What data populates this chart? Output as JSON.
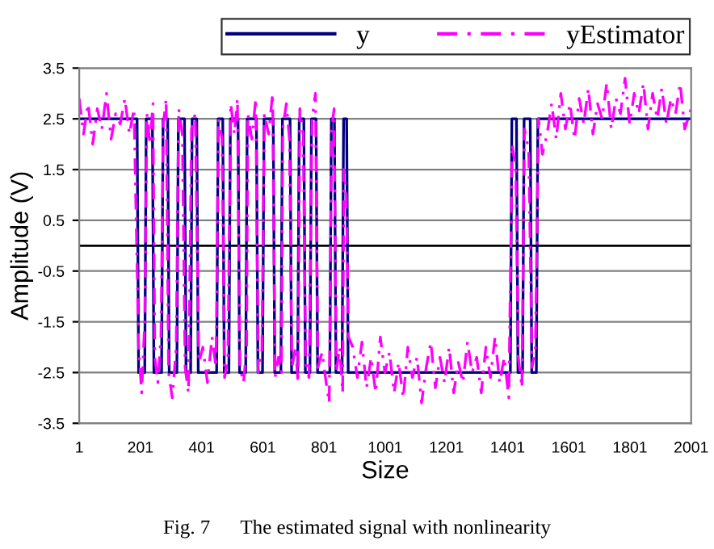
{
  "chart_data": {
    "type": "line",
    "xlabel": "Size",
    "ylabel": "Amplitude (V)",
    "xlim": [
      1,
      2001
    ],
    "xticks": [
      1,
      201,
      401,
      601,
      801,
      1001,
      1201,
      1401,
      1601,
      1801,
      2001
    ],
    "ylim": [
      -3.5,
      3.5
    ],
    "yticks": [
      -3.5,
      -2.5,
      -1.5,
      -0.5,
      0.5,
      1.5,
      2.5,
      3.5
    ],
    "grid": "y",
    "legend": "top right",
    "ref_lines": [
      {
        "axis": "y",
        "value": 0,
        "color": "#000000"
      }
    ],
    "annotations": [
      "Fig. 7      The estimated signal with nonlinearity"
    ],
    "series": [
      {
        "name": "y",
        "color": "#000080",
        "line_style": "solid",
        "x": [
          1,
          190,
          195,
          215,
          220,
          240,
          245,
          270,
          275,
          290,
          295,
          320,
          325,
          345,
          350,
          365,
          370,
          385,
          390,
          450,
          455,
          470,
          475,
          490,
          495,
          520,
          525,
          545,
          550,
          580,
          585,
          600,
          605,
          635,
          640,
          660,
          665,
          690,
          695,
          715,
          720,
          735,
          740,
          755,
          760,
          775,
          780,
          820,
          825,
          835,
          840,
          860,
          865,
          875,
          880,
          1410,
          1415,
          1430,
          1435,
          1450,
          1455,
          1475,
          1480,
          1495,
          1500,
          2001
        ],
        "values": [
          2.5,
          2.5,
          -2.5,
          -2.5,
          2.5,
          2.5,
          -2.5,
          -2.5,
          2.5,
          2.5,
          -2.5,
          -2.5,
          2.5,
          2.5,
          -2.5,
          -2.5,
          2.5,
          2.5,
          -2.5,
          -2.5,
          2.5,
          2.5,
          -2.5,
          -2.5,
          2.5,
          2.5,
          -2.5,
          -2.5,
          2.5,
          2.5,
          -2.5,
          -2.5,
          2.5,
          2.5,
          -2.5,
          -2.5,
          2.5,
          2.5,
          -2.5,
          -2.5,
          2.5,
          2.5,
          -2.5,
          -2.5,
          2.5,
          2.5,
          -2.5,
          -2.5,
          2.5,
          2.5,
          -2.5,
          -2.5,
          2.5,
          2.5,
          -2.5,
          -2.5,
          2.5,
          2.5,
          -2.5,
          -2.5,
          2.5,
          2.5,
          -2.5,
          -2.5,
          2.5,
          2.5
        ]
      },
      {
        "name": "yEstimator",
        "color": "#ff00ff",
        "line_style": "dashed",
        "x": [
          1,
          15,
          30,
          45,
          60,
          75,
          90,
          105,
          120,
          135,
          150,
          165,
          180,
          195,
          205,
          215,
          222,
          232,
          242,
          248,
          258,
          268,
          276,
          285,
          293,
          305,
          318,
          326,
          338,
          347,
          358,
          368,
          380,
          392,
          405,
          420,
          435,
          448,
          456,
          468,
          476,
          487,
          496,
          508,
          518,
          526,
          538,
          548,
          552,
          565,
          578,
          586,
          598,
          606,
          620,
          633,
          641,
          652,
          662,
          666,
          678,
          688,
          696,
          708,
          716,
          722,
          733,
          741,
          752,
          762,
          773,
          781,
          795,
          808,
          818,
          826,
          834,
          841,
          852,
          862,
          866,
          874,
          881,
          895,
          910,
          925,
          940,
          955,
          970,
          985,
          1000,
          1015,
          1030,
          1045,
          1060,
          1075,
          1090,
          1105,
          1120,
          1135,
          1150,
          1165,
          1180,
          1195,
          1210,
          1225,
          1240,
          1255,
          1270,
          1285,
          1300,
          1315,
          1330,
          1345,
          1360,
          1375,
          1390,
          1405,
          1416,
          1428,
          1436,
          1448,
          1456,
          1470,
          1481,
          1492,
          1502,
          1515,
          1530,
          1545,
          1560,
          1575,
          1590,
          1605,
          1620,
          1635,
          1650,
          1665,
          1680,
          1695,
          1710,
          1725,
          1740,
          1755,
          1770,
          1785,
          1800,
          1815,
          1830,
          1845,
          1860,
          1875,
          1890,
          1905,
          1920,
          1935,
          1950,
          1965,
          1980,
          2001
        ],
        "values": [
          2.9,
          2.2,
          2.8,
          2.0,
          2.7,
          2.3,
          3.0,
          2.1,
          2.6,
          2.4,
          2.9,
          2.2,
          2.7,
          -2.0,
          -2.9,
          -1.5,
          2.6,
          2.0,
          2.8,
          -2.2,
          -2.7,
          -1.8,
          2.4,
          2.9,
          -2.5,
          -3.0,
          -2.0,
          2.7,
          2.2,
          -2.4,
          -2.9,
          2.3,
          2.6,
          -2.3,
          -2.0,
          -2.7,
          -1.8,
          -2.4,
          2.5,
          2.1,
          -2.6,
          -2.2,
          2.8,
          2.2,
          2.9,
          -2.4,
          -2.7,
          -2.0,
          2.6,
          2.1,
          2.9,
          -2.5,
          -2.1,
          2.6,
          2.2,
          3.0,
          -2.6,
          -2.2,
          -2.5,
          2.3,
          2.8,
          2.1,
          -2.4,
          -2.0,
          -2.7,
          2.7,
          2.2,
          -2.3,
          -2.6,
          2.5,
          3.0,
          -2.4,
          -2.1,
          -2.7,
          -3.1,
          2.3,
          2.7,
          -2.5,
          -2.0,
          -2.9,
          1.5,
          1.0,
          -1.8,
          -2.0,
          -2.6,
          -1.9,
          -2.8,
          -2.2,
          -2.9,
          -1.8,
          -2.5,
          -2.1,
          -2.9,
          -2.3,
          -3.0,
          -2.0,
          -2.6,
          -2.2,
          -3.1,
          -2.4,
          -1.9,
          -2.8,
          -2.2,
          -2.7,
          -2.0,
          -2.9,
          -2.3,
          -2.7,
          -1.9,
          -2.5,
          -2.2,
          -2.9,
          -2.0,
          -2.6,
          -1.8,
          -2.7,
          -2.2,
          -3.0,
          2.0,
          1.5,
          -2.2,
          -2.8,
          2.3,
          1.9,
          -2.4,
          -2.0,
          2.5,
          1.8,
          2.2,
          2.8,
          2.1,
          3.0,
          2.3,
          2.8,
          2.1,
          2.9,
          2.4,
          3.1,
          2.2,
          2.8,
          2.5,
          3.2,
          2.3,
          2.9,
          2.6,
          3.3,
          2.4,
          3.0,
          2.6,
          3.2,
          2.3,
          3.0,
          2.5,
          3.1,
          2.4,
          2.9,
          2.6,
          3.2,
          2.3,
          2.7
        ]
      }
    ]
  }
}
